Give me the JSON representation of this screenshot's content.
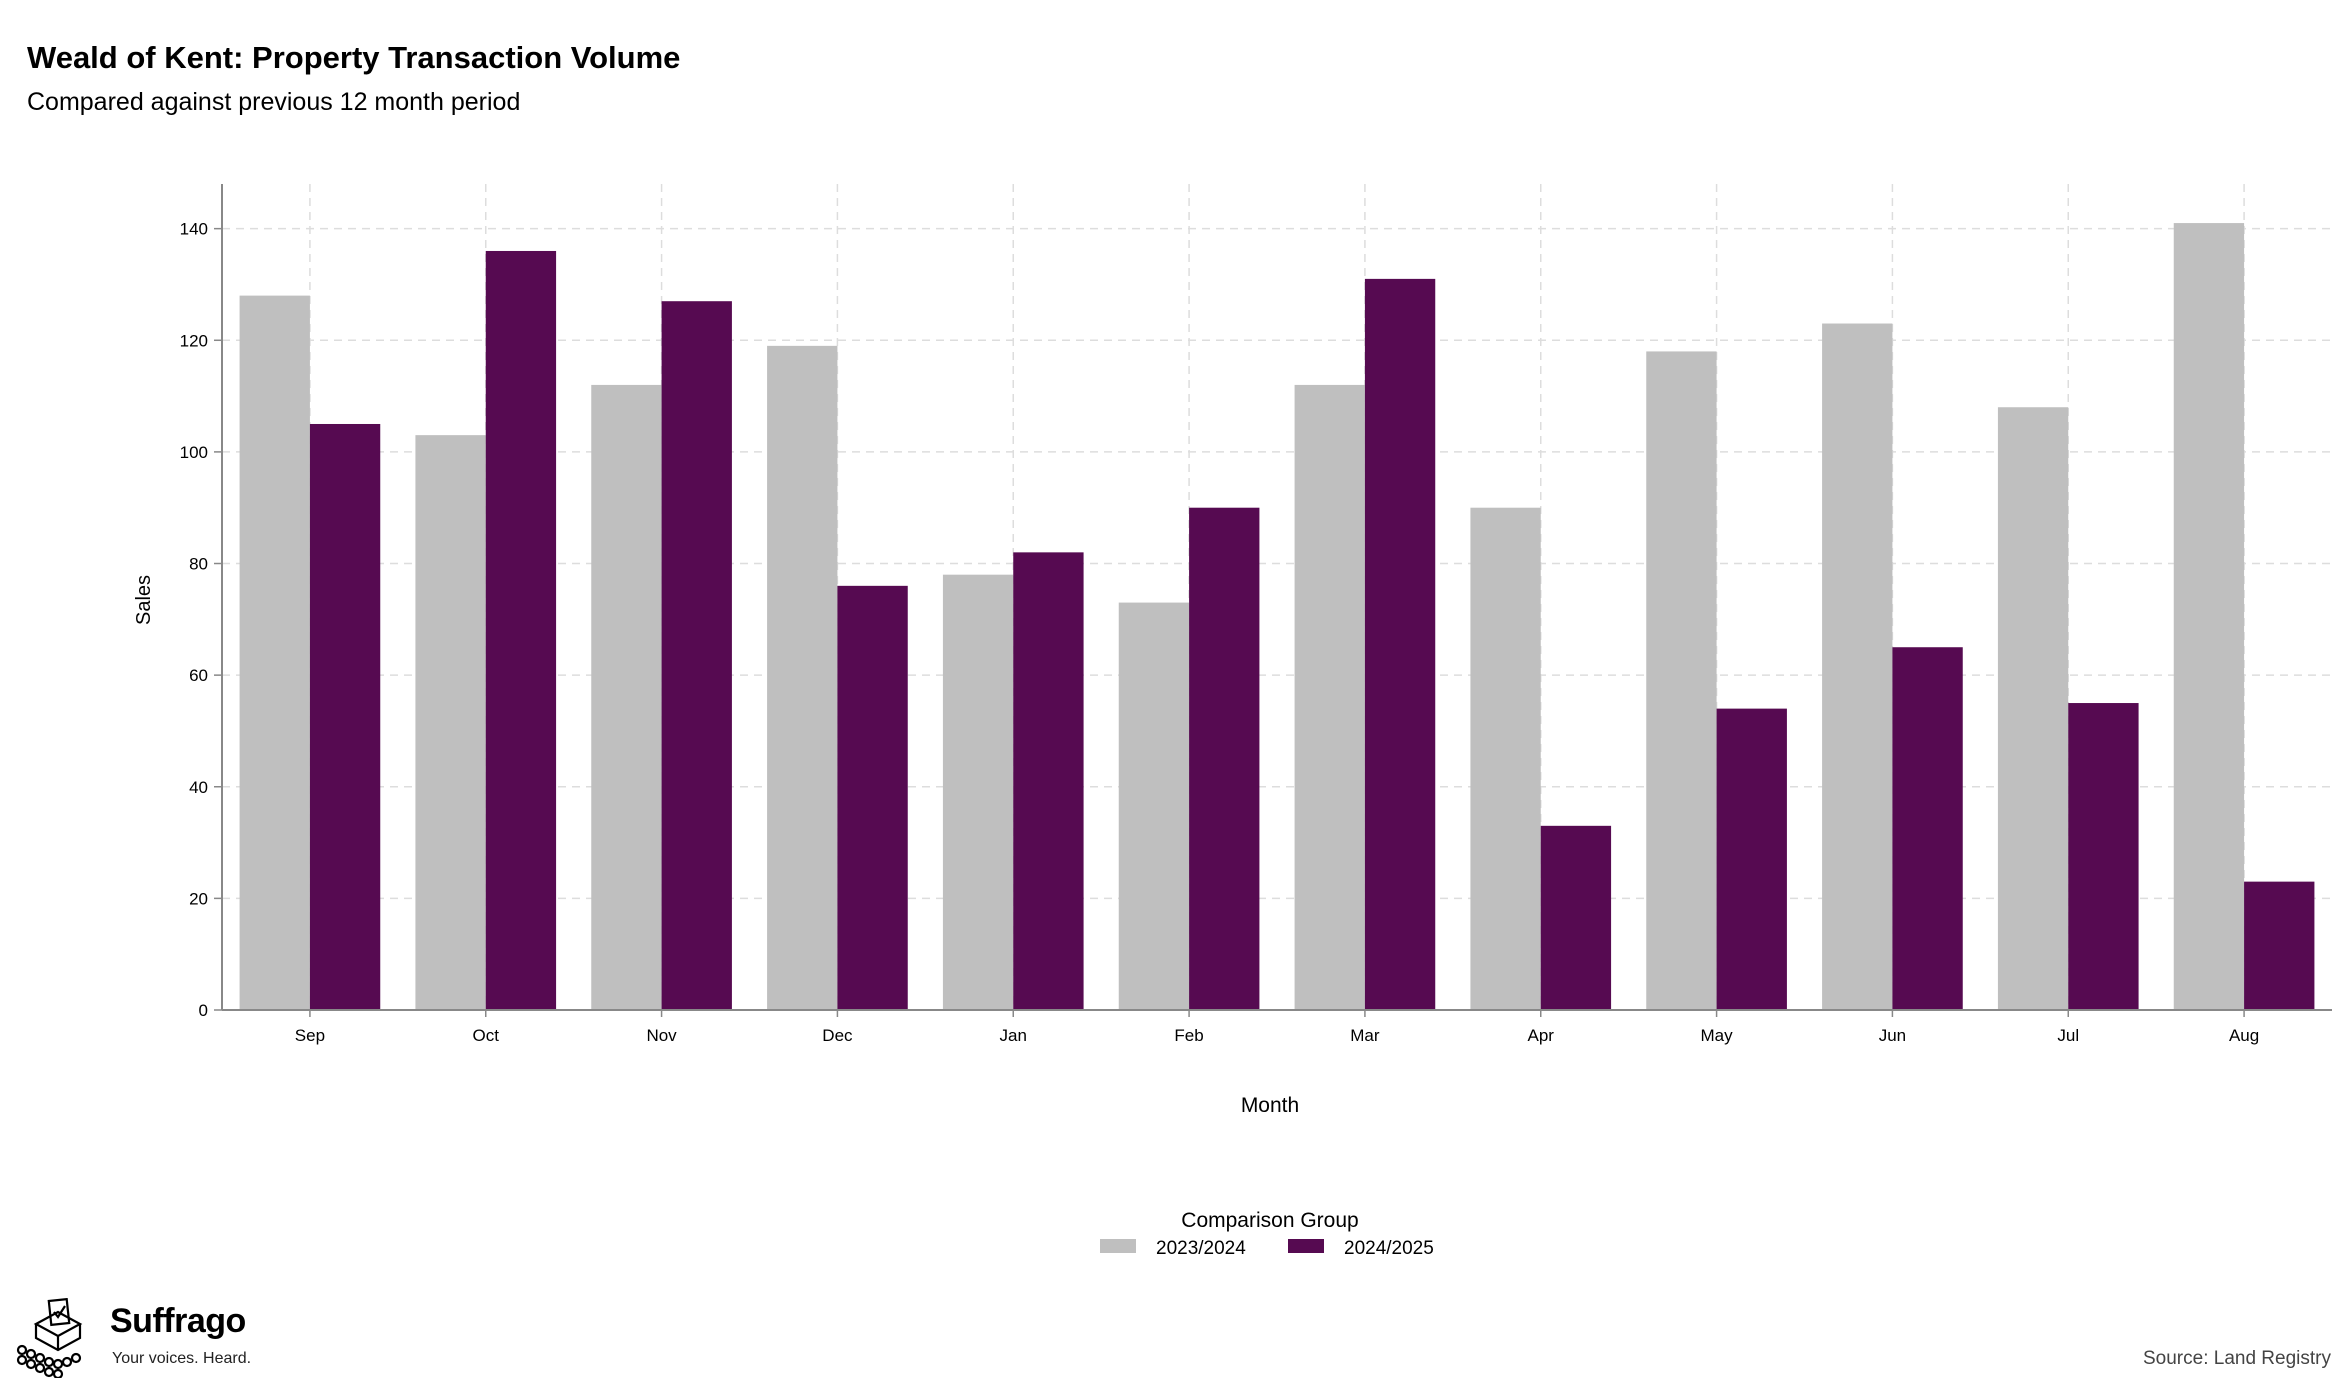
{
  "title": "Weald of Kent: Property Transaction Volume",
  "subtitle": "Compared against previous 12 month period",
  "source": "Source: Land Registry",
  "logo": {
    "name": "Suffrago",
    "tagline": "Your voices. Heard."
  },
  "colors": {
    "series_a": "#bfbfbf",
    "series_b": "#560a51",
    "grid": "#dddddd",
    "axis": "#888888"
  },
  "chart_data": {
    "type": "bar",
    "xlabel": "Month",
    "ylabel": "Sales",
    "ylim": [
      0,
      148
    ],
    "yticks": [
      0,
      20,
      40,
      60,
      80,
      100,
      120,
      140
    ],
    "grid": true,
    "legend": {
      "title": "Comparison Group",
      "position": "bottom"
    },
    "categories": [
      "Sep",
      "Oct",
      "Nov",
      "Dec",
      "Jan",
      "Feb",
      "Mar",
      "Apr",
      "May",
      "Jun",
      "Jul",
      "Aug"
    ],
    "series": [
      {
        "name": "2023/2024",
        "values": [
          128,
          103,
          112,
          119,
          78,
          73,
          112,
          90,
          118,
          123,
          108,
          141
        ]
      },
      {
        "name": "2024/2025",
        "values": [
          105,
          136,
          127,
          76,
          82,
          90,
          131,
          33,
          54,
          65,
          55,
          23
        ]
      }
    ]
  }
}
